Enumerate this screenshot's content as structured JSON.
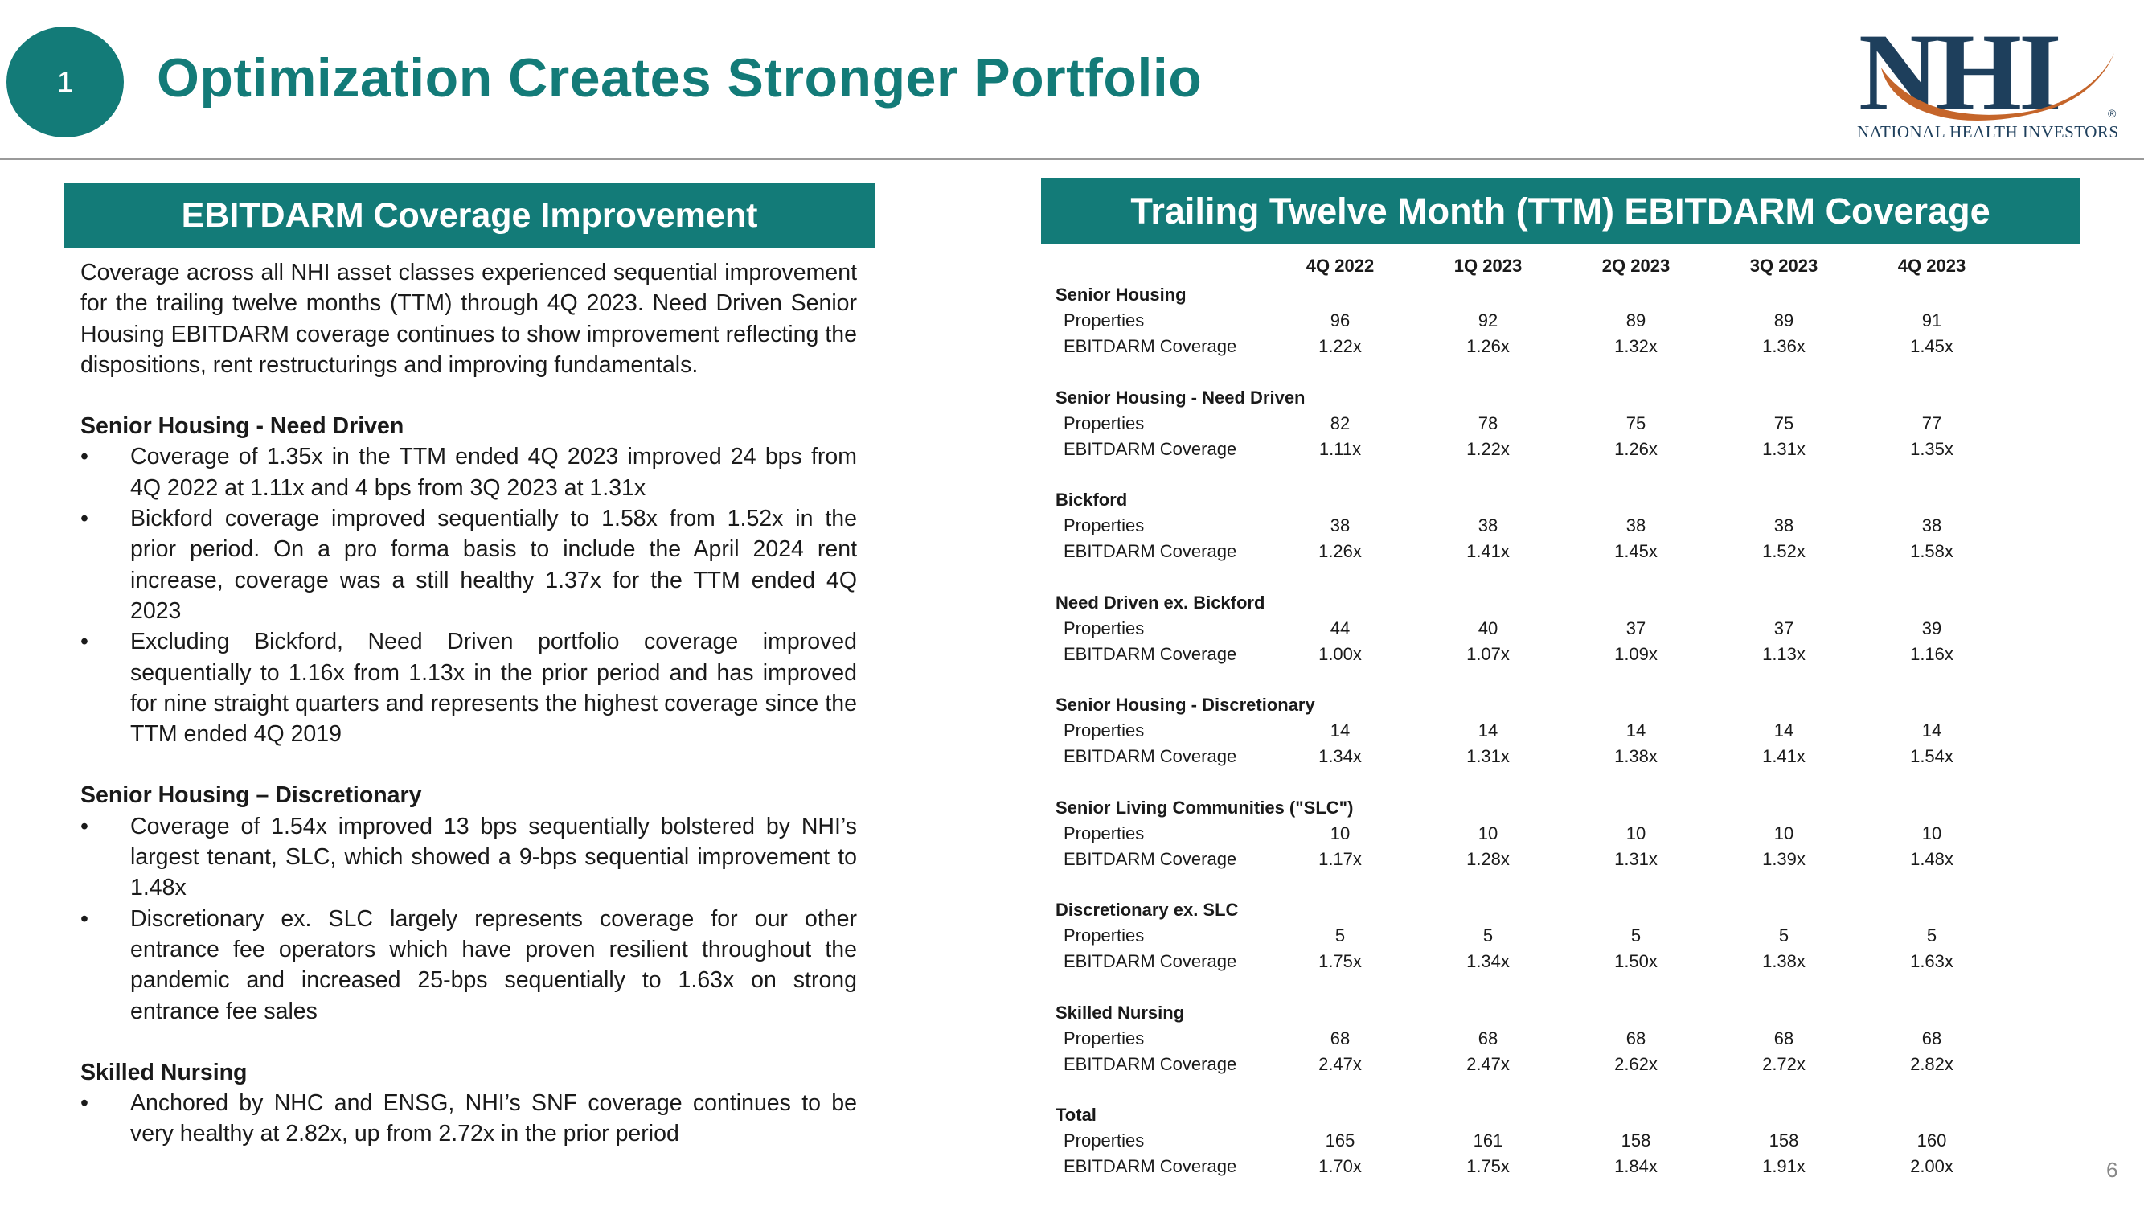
{
  "header": {
    "badge": "1",
    "title": "Optimization Creates Stronger Portfolio",
    "logo_text": "NHI",
    "logo_tagline": "NATIONAL HEALTH INVESTORS",
    "logo_mark": "®"
  },
  "left": {
    "banner": "EBITDARM Coverage Improvement",
    "intro": "Coverage across all NHI asset classes experienced sequential improvement for the trailing twelve months (TTM) through 4Q 2023. Need Driven Senior Housing EBITDARM coverage continues to show improvement reflecting the dispositions, rent restructurings and improving fundamentals.",
    "bullet_char": "•",
    "sections": [
      {
        "title": "Senior Housing  - Need Driven",
        "bullets": [
          "Coverage of 1.35x in the TTM ended 4Q 2023 improved 24 bps from 4Q 2022 at 1.11x and 4 bps from 3Q 2023 at 1.31x",
          "Bickford coverage improved sequentially to 1.58x from 1.52x in the prior period.  On a pro forma basis to include the April 2024 rent increase, coverage was a still healthy 1.37x for the TTM ended 4Q 2023",
          "Excluding Bickford, Need Driven portfolio coverage improved sequentially to 1.16x from 1.13x in the prior period and has improved for nine straight quarters and represents the highest coverage since the TTM ended 4Q 2019"
        ]
      },
      {
        "title": "Senior Housing – Discretionary",
        "bullets": [
          "Coverage of 1.54x improved 13 bps sequentially bolstered by NHI’s largest tenant, SLC, which showed a 9-bps sequential improvement to 1.48x",
          "Discretionary ex. SLC largely represents coverage for our other entrance fee operators which have proven resilient throughout the pandemic and increased 25-bps sequentially to 1.63x on strong entrance fee sales"
        ]
      },
      {
        "title": "Skilled Nursing",
        "bullets": [
          "Anchored by NHC and ENSG, NHI’s SNF coverage continues to be very healthy at 2.82x, up from 2.72x in the prior period"
        ]
      }
    ]
  },
  "table": {
    "banner": "Trailing Twelve Month (TTM) EBITDARM Coverage",
    "row_label_properties": "Properties",
    "row_label_coverage": "EBITDARM Coverage",
    "columns": [
      "4Q 2022",
      "1Q 2023",
      "2Q 2023",
      "3Q 2023",
      "4Q 2023"
    ],
    "groups": [
      {
        "name": "Senior Housing",
        "properties": [
          "96",
          "92",
          "89",
          "89",
          "91"
        ],
        "coverage": [
          "1.22x",
          "1.26x",
          "1.32x",
          "1.36x",
          "1.45x"
        ]
      },
      {
        "name": "Senior Housing - Need Driven",
        "properties": [
          "82",
          "78",
          "75",
          "75",
          "77"
        ],
        "coverage": [
          "1.11x",
          "1.22x",
          "1.26x",
          "1.31x",
          "1.35x"
        ]
      },
      {
        "name": "Bickford",
        "properties": [
          "38",
          "38",
          "38",
          "38",
          "38"
        ],
        "coverage": [
          "1.26x",
          "1.41x",
          "1.45x",
          "1.52x",
          "1.58x"
        ]
      },
      {
        "name": "Need Driven ex. Bickford",
        "properties": [
          "44",
          "40",
          "37",
          "37",
          "39"
        ],
        "coverage": [
          "1.00x",
          "1.07x",
          "1.09x",
          "1.13x",
          "1.16x"
        ]
      },
      {
        "name": "Senior Housing - Discretionary",
        "properties": [
          "14",
          "14",
          "14",
          "14",
          "14"
        ],
        "coverage": [
          "1.34x",
          "1.31x",
          "1.38x",
          "1.41x",
          "1.54x"
        ]
      },
      {
        "name": "Senior Living Communities (\"SLC\")",
        "properties": [
          "10",
          "10",
          "10",
          "10",
          "10"
        ],
        "coverage": [
          "1.17x",
          "1.28x",
          "1.31x",
          "1.39x",
          "1.48x"
        ]
      },
      {
        "name": "Discretionary ex. SLC",
        "properties": [
          "5",
          "5",
          "5",
          "5",
          "5"
        ],
        "coverage": [
          "1.75x",
          "1.34x",
          "1.50x",
          "1.38x",
          "1.63x"
        ]
      },
      {
        "name": "Skilled Nursing",
        "properties": [
          "68",
          "68",
          "68",
          "68",
          "68"
        ],
        "coverage": [
          "2.47x",
          "2.47x",
          "2.62x",
          "2.72x",
          "2.82x"
        ]
      },
      {
        "name": "Total",
        "properties": [
          "165",
          "161",
          "158",
          "158",
          "160"
        ],
        "coverage": [
          "1.70x",
          "1.75x",
          "1.84x",
          "1.91x",
          "2.00x"
        ]
      }
    ]
  },
  "footer": {
    "page_number": "6"
  },
  "colors": {
    "teal": "#137b78",
    "navy": "#1e3f5c",
    "orange": "#c5652a"
  }
}
